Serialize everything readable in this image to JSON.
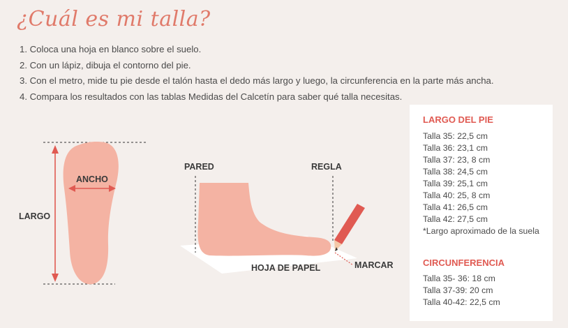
{
  "title": "¿Cuál es mi talla?",
  "steps": [
    "1. Coloca una hoja en blanco sobre el suelo.",
    "2. Con un lápiz, dibuja el contorno del pie.",
    "3. Con el metro, mide tu pie desde el talón hasta el dedo más largo y luego, la circunferencia en la parte más ancha.",
    "4. Compara los resultados con las tablas Medidas del Calcetín para saber qué talla necesitas."
  ],
  "diagram": {
    "ancho": "ANCHO",
    "largo": "LARGO",
    "pared": "PARED",
    "regla": "REGLA",
    "hoja": "HOJA DE PAPEL",
    "marcar": "MARCAR"
  },
  "panel": {
    "largo_title": "LARGO DEL PIE",
    "largo_rows": [
      "Talla 35: 22,5 cm",
      "Talla 36: 23,1 cm",
      "Talla 37: 23, 8 cm",
      "Talla 38: 24,5 cm",
      "Talla 39: 25,1 cm",
      "Talla 40: 25, 8 cm",
      "Talla 41: 26,5 cm",
      "Talla 42: 27,5 cm",
      "*Largo aproximado de la suela"
    ],
    "circ_title": "CIRCUNFERENCIA",
    "circ_rows": [
      "Talla 35- 36: 18 cm",
      "Talla 37-39: 20 cm",
      "Talla 40-42: 22,5 cm"
    ]
  },
  "colors": {
    "accent": "#e07a6a",
    "red": "#e05a52",
    "foot": "#f4b3a3",
    "background": "#f4efec"
  }
}
